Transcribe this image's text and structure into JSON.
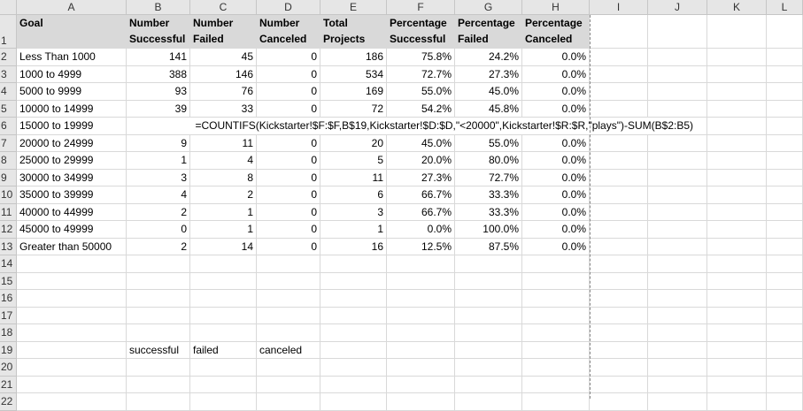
{
  "columns": [
    "A",
    "B",
    "C",
    "D",
    "E",
    "F",
    "G",
    "H",
    "I",
    "J",
    "K",
    "L"
  ],
  "header_row": {
    "row": "1",
    "cells": [
      "Goal",
      "Number Successful",
      "Number Failed",
      "Number Canceled",
      "Total Projects",
      "Percentage Successful",
      "Percentage Failed",
      "Percentage Canceled"
    ]
  },
  "rows": [
    {
      "row": "2",
      "cells": [
        "Less Than 1000",
        "141",
        "45",
        "0",
        "186",
        "75.8%",
        "24.2%",
        "0.0%"
      ]
    },
    {
      "row": "3",
      "cells": [
        "1000 to 4999",
        "388",
        "146",
        "0",
        "534",
        "72.7%",
        "27.3%",
        "0.0%"
      ]
    },
    {
      "row": "4",
      "cells": [
        "5000 to 9999",
        "93",
        "76",
        "0",
        "169",
        "55.0%",
        "45.0%",
        "0.0%"
      ]
    },
    {
      "row": "5",
      "cells": [
        "10000 to 14999",
        "39",
        "33",
        "0",
        "72",
        "54.2%",
        "45.8%",
        "0.0%"
      ]
    },
    {
      "row": "6",
      "cells": [
        "15000 to 19999",
        "=COUNTIFS(Kickstarter!$F:$F,B$19,Kickstarter!$D:$D,\"<20000\",Kickstarter!$R:$R,\"plays\")-SUM(B$2:B5)",
        "",
        "",
        "",
        "",
        "",
        ""
      ]
    },
    {
      "row": "7",
      "cells": [
        "20000 to 24999",
        "9",
        "11",
        "0",
        "20",
        "45.0%",
        "55.0%",
        "0.0%"
      ]
    },
    {
      "row": "8",
      "cells": [
        "25000 to 29999",
        "1",
        "4",
        "0",
        "5",
        "20.0%",
        "80.0%",
        "0.0%"
      ]
    },
    {
      "row": "9",
      "cells": [
        "30000 to 34999",
        "3",
        "8",
        "0",
        "11",
        "27.3%",
        "72.7%",
        "0.0%"
      ]
    },
    {
      "row": "10",
      "cells": [
        "35000 to 39999",
        "4",
        "2",
        "0",
        "6",
        "66.7%",
        "33.3%",
        "0.0%"
      ]
    },
    {
      "row": "11",
      "cells": [
        "40000 to 44999",
        "2",
        "1",
        "0",
        "3",
        "66.7%",
        "33.3%",
        "0.0%"
      ]
    },
    {
      "row": "12",
      "cells": [
        "45000 to 49999",
        "0",
        "1",
        "0",
        "1",
        "0.0%",
        "100.0%",
        "0.0%"
      ]
    },
    {
      "row": "13",
      "cells": [
        "Greater than 50000",
        "2",
        "14",
        "0",
        "16",
        "12.5%",
        "87.5%",
        "0.0%"
      ]
    },
    {
      "row": "14",
      "cells": [
        "",
        "",
        "",
        "",
        "",
        "",
        "",
        ""
      ]
    },
    {
      "row": "15",
      "cells": [
        "",
        "",
        "",
        "",
        "",
        "",
        "",
        ""
      ]
    },
    {
      "row": "16",
      "cells": [
        "",
        "",
        "",
        "",
        "",
        "",
        "",
        ""
      ]
    },
    {
      "row": "17",
      "cells": [
        "",
        "",
        "",
        "",
        "",
        "",
        "",
        ""
      ]
    },
    {
      "row": "18",
      "cells": [
        "",
        "",
        "",
        "",
        "",
        "",
        "",
        ""
      ]
    },
    {
      "row": "19",
      "cells": [
        "",
        "successful",
        "failed",
        "canceled",
        "",
        "",
        "",
        ""
      ]
    },
    {
      "row": "20",
      "cells": [
        "",
        "",
        "",
        "",
        "",
        "",
        "",
        ""
      ]
    },
    {
      "row": "21",
      "cells": [
        "",
        "",
        "",
        "",
        "",
        "",
        "",
        ""
      ]
    },
    {
      "row": "22",
      "cells": [
        "",
        "",
        "",
        "",
        "",
        "",
        "",
        ""
      ]
    }
  ]
}
